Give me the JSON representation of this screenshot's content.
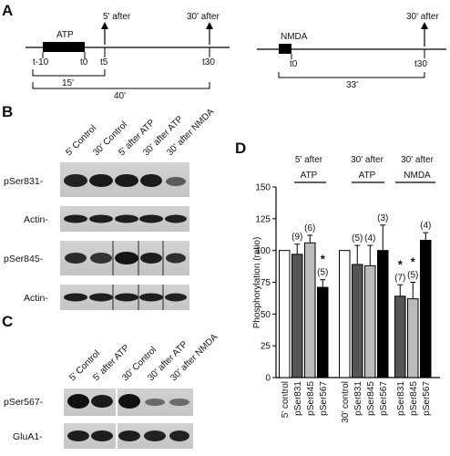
{
  "panels": {
    "a": "A",
    "b": "B",
    "c": "C",
    "d": "D"
  },
  "timeline_atp": {
    "drug": "ATP",
    "arrow": "5' after",
    "arrow2": "30' after",
    "t_start": "t-10",
    "t0": "t0",
    "t5": "t5",
    "t30": "t30",
    "span1": "15'",
    "span2": "40'"
  },
  "timeline_nmda": {
    "drug": "NMDA",
    "arrow": "30' after",
    "t0": "t0",
    "t30": "t30",
    "span": "33'"
  },
  "blot_b": {
    "lanes": [
      "5' Control",
      "30' Control",
      "5' after ATP",
      "30' after ATP",
      "30' after NMDA"
    ],
    "rows": [
      "pSer831-",
      "Actin-",
      "pSer845-",
      "Actin-"
    ]
  },
  "blot_c": {
    "lanes": [
      "5' Control",
      "5' after ATP",
      "30' Control",
      "30' after ATP",
      "30' after NMDA"
    ],
    "rows": [
      "pSer567-",
      "GluA1-"
    ]
  },
  "chart_data": {
    "type": "bar",
    "ylabel": "Phosphorylation (ratio)",
    "ylim": [
      0,
      150
    ],
    "yticks": [
      0,
      25,
      50,
      75,
      100,
      125,
      150
    ],
    "group_headers": [
      {
        "top": "5' after",
        "bottom": "ATP"
      },
      {
        "top": "30' after",
        "bottom": "ATP"
      },
      {
        "top": "30' after",
        "bottom": "NMDA"
      }
    ],
    "categories": [
      "5' control",
      "pSer831",
      "pSer845",
      "pSer567",
      "30' control",
      "pSer831",
      "pSer845",
      "pSer567",
      "pSer831",
      "pSer845",
      "pSer567"
    ],
    "values": [
      100,
      97,
      106,
      71,
      100,
      89,
      88,
      100,
      64,
      62,
      108
    ],
    "errors": [
      0,
      8,
      6,
      6,
      0,
      15,
      16,
      20,
      9,
      13,
      6
    ],
    "n_labels": [
      "",
      "(9)",
      "(6)",
      "(5)",
      "",
      "(5)",
      "(4)",
      "(3)",
      "(7)",
      "(5)",
      "(4)"
    ],
    "stars": [
      "",
      "",
      "",
      "*",
      "",
      "",
      "",
      "",
      "*",
      "*",
      ""
    ],
    "fill_colors": [
      "#ffffff",
      "#555555",
      "#bbbbbb",
      "#000000",
      "#ffffff",
      "#555555",
      "#bbbbbb",
      "#000000",
      "#555555",
      "#bbbbbb",
      "#000000"
    ],
    "grid": false
  }
}
